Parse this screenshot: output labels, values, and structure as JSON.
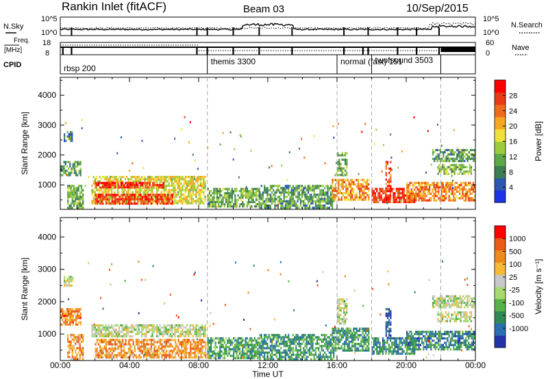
{
  "header": {
    "site": "Rankin Inlet (fitACF)",
    "beam": "Beam 03",
    "date": "10/Sep/2015"
  },
  "status_panels": {
    "nsky_label": "N.Sky",
    "nsky_ticks": [
      "10^5",
      "10^0"
    ],
    "nsearch_label": "N.Search",
    "nsearch_ticks": [
      "10^5",
      "10^0"
    ],
    "freq_label_1": "Freq.",
    "freq_label_2": "[MHz]",
    "freq_ticks": [
      "18",
      "8"
    ],
    "nave_label": "Nave",
    "nave_ticks": [
      "60",
      "0"
    ],
    "cpid_label": "CPID"
  },
  "cpid_segments": [
    {
      "label": "rbsp 200",
      "start_hour": 0.0
    },
    {
      "label": "themis 3300",
      "start_hour": 8.5
    },
    {
      "label": "normal (fast) 151",
      "start_hour": 16.0
    },
    {
      "label": "twofsound 3503",
      "start_hour": 18.0
    },
    {
      "start_hour": 22.0
    }
  ],
  "chart_data": [
    {
      "type": "heatmap",
      "quantity": "Power",
      "ylabel": "Slant Range [km]",
      "xlabel": "Time UT",
      "xlim": [
        0,
        24
      ],
      "ylim": [
        180,
        4600
      ],
      "yticks": [
        1000,
        2000,
        3000,
        4000
      ],
      "xtick_labels": [
        "00:00",
        "04:00",
        "08:00",
        "12:00",
        "16:00",
        "20:00",
        "00:00"
      ],
      "colorbar": {
        "label": "Power [dB]",
        "ticks": [
          "4",
          "8",
          "12",
          "16",
          "20",
          "24",
          "28"
        ],
        "colors": [
          "#1a33e6",
          "#2b57b0",
          "#3f7d52",
          "#5fa84a",
          "#9ccc3c",
          "#f0e03c",
          "#f5a623",
          "#ef6a1a",
          "#e83a14",
          "#ff0000"
        ]
      },
      "regions": [
        {
          "t0": 0.0,
          "t1": 1.2,
          "r0": 1300,
          "r1": 1800,
          "level": 0.3
        },
        {
          "t0": 0.2,
          "t1": 0.7,
          "r0": 2500,
          "r1": 2800,
          "level": 0.2
        },
        {
          "t0": 0.4,
          "t1": 1.3,
          "r0": 180,
          "r1": 1000,
          "level": 0.35
        },
        {
          "t0": 1.8,
          "t1": 8.4,
          "r0": 400,
          "r1": 1300,
          "level": 0.55
        },
        {
          "t0": 2.0,
          "t1": 6.0,
          "r0": 900,
          "r1": 1100,
          "level": 0.95
        },
        {
          "t0": 2.0,
          "t1": 6.5,
          "r0": 350,
          "r1": 700,
          "level": 0.9
        },
        {
          "t0": 8.5,
          "t1": 11.5,
          "r0": 250,
          "r1": 900,
          "level": 0.35
        },
        {
          "t0": 11.5,
          "t1": 15.8,
          "r0": 250,
          "r1": 1000,
          "level": 0.3
        },
        {
          "t0": 15.7,
          "t1": 17.8,
          "r0": 500,
          "r1": 1200,
          "level": 0.7
        },
        {
          "t0": 16.0,
          "t1": 16.6,
          "r0": 1300,
          "r1": 2100,
          "level": 0.35
        },
        {
          "t0": 18.0,
          "t1": 20.5,
          "r0": 400,
          "r1": 900,
          "level": 0.9
        },
        {
          "t0": 18.8,
          "t1": 19.1,
          "r0": 900,
          "r1": 1800,
          "level": 0.85
        },
        {
          "t0": 20.0,
          "t1": 24.0,
          "r0": 500,
          "r1": 1100,
          "level": 0.75
        },
        {
          "t0": 21.5,
          "t1": 24.0,
          "r0": 1800,
          "r1": 2200,
          "level": 0.3
        },
        {
          "t0": 21.8,
          "t1": 23.8,
          "r0": 1400,
          "r1": 1700,
          "level": 0.4
        }
      ]
    },
    {
      "type": "heatmap",
      "quantity": "Velocity",
      "ylabel": "Slant Range [km]",
      "xlabel": "Time UT",
      "xlim": [
        0,
        24
      ],
      "ylim": [
        180,
        4600
      ],
      "yticks": [
        1000,
        2000,
        3000,
        4000
      ],
      "xtick_labels": [
        "00:00",
        "04:00",
        "08:00",
        "12:00",
        "16:00",
        "20:00",
        "00:00"
      ],
      "colorbar": {
        "label": "Velocity [m s⁻¹]",
        "ticks": [
          "1000",
          "500",
          "100",
          "25",
          "-25",
          "-100",
          "-500",
          "-1000"
        ],
        "colors": [
          "#2233aa",
          "#2b6fb0",
          "#2f8a55",
          "#58b048",
          "#a8d870",
          "#c8c8c8",
          "#f5b935",
          "#ee8a1a",
          "#ea5a14",
          "#ff0000"
        ]
      },
      "regions": [
        {
          "t0": 0.0,
          "t1": 1.2,
          "r0": 1300,
          "r1": 1800,
          "level": 0.8
        },
        {
          "t0": 0.2,
          "t1": 0.7,
          "r0": 2500,
          "r1": 2800,
          "level": 0.5
        },
        {
          "t0": 0.4,
          "t1": 1.3,
          "r0": 180,
          "r1": 1000,
          "level": 0.75
        },
        {
          "t0": 1.8,
          "t1": 8.4,
          "r0": 900,
          "r1": 1300,
          "level": 0.5
        },
        {
          "t0": 2.0,
          "t1": 8.4,
          "r0": 300,
          "r1": 850,
          "level": 0.75
        },
        {
          "t0": 8.5,
          "t1": 11.5,
          "r0": 250,
          "r1": 900,
          "level": 0.3
        },
        {
          "t0": 11.5,
          "t1": 15.8,
          "r0": 250,
          "r1": 1000,
          "level": 0.25
        },
        {
          "t0": 15.7,
          "t1": 17.8,
          "r0": 500,
          "r1": 1200,
          "level": 0.25
        },
        {
          "t0": 16.0,
          "t1": 16.6,
          "r0": 1300,
          "r1": 2100,
          "level": 0.5
        },
        {
          "t0": 18.0,
          "t1": 20.5,
          "r0": 400,
          "r1": 900,
          "level": 0.2
        },
        {
          "t0": 18.8,
          "t1": 19.1,
          "r0": 900,
          "r1": 1800,
          "level": 0.05
        },
        {
          "t0": 20.0,
          "t1": 24.0,
          "r0": 500,
          "r1": 1100,
          "level": 0.2
        },
        {
          "t0": 21.5,
          "t1": 24.0,
          "r0": 1800,
          "r1": 2200,
          "level": 0.5
        },
        {
          "t0": 21.8,
          "t1": 23.8,
          "r0": 1400,
          "r1": 1700,
          "level": 0.5
        }
      ]
    }
  ]
}
